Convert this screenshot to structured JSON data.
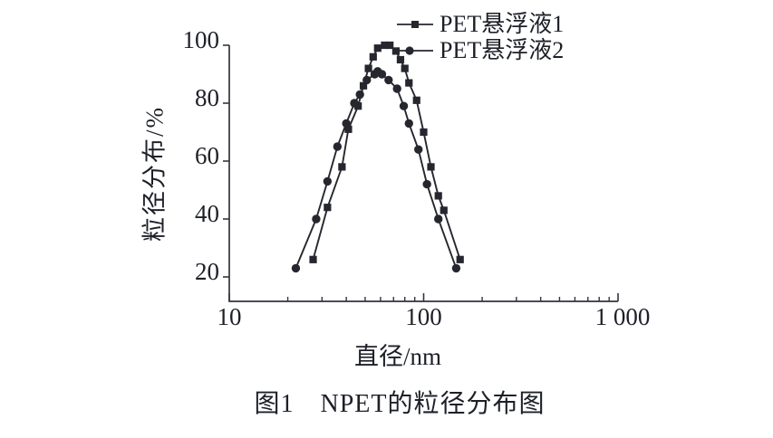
{
  "figure_caption": "图1　NPET的粒径分布图",
  "colors": {
    "axis": "#33343c",
    "series": "#26272e",
    "text": "#1e2028",
    "background": "#ffffff"
  },
  "chart_data": {
    "type": "line",
    "title": "",
    "xlabel": "直径/nm",
    "ylabel": "粒径分布/%",
    "x_scale": "log",
    "xlim": [
      10,
      1000
    ],
    "ylim": [
      11.5,
      102
    ],
    "grid": false,
    "legend_position": "top-right",
    "x_axis": {
      "major_ticks": [
        10,
        100,
        1000
      ],
      "major_tick_labels": [
        "10",
        "100",
        "1 000"
      ],
      "minor_ticks": [
        20,
        30,
        40,
        50,
        60,
        70,
        80,
        90,
        200,
        300,
        400,
        500,
        600,
        700,
        800,
        900
      ]
    },
    "y_axis": {
      "ticks": [
        20,
        40,
        60,
        80,
        100
      ],
      "tick_labels": [
        "20",
        "40",
        "60",
        "80",
        "100"
      ]
    },
    "series": [
      {
        "name": "PET悬浮液1",
        "marker": "square",
        "color": "#26272e",
        "points": [
          [
            27,
            26
          ],
          [
            32,
            44
          ],
          [
            38,
            58
          ],
          [
            41,
            71
          ],
          [
            46,
            79
          ],
          [
            49,
            86
          ],
          [
            52,
            92
          ],
          [
            55,
            96
          ],
          [
            58,
            99
          ],
          [
            63,
            100
          ],
          [
            67,
            100
          ],
          [
            72,
            98
          ],
          [
            76,
            95
          ],
          [
            80,
            92
          ],
          [
            84,
            87
          ],
          [
            92,
            81
          ],
          [
            100,
            70
          ],
          [
            109,
            58
          ],
          [
            119,
            48
          ],
          [
            127,
            43
          ],
          [
            154,
            26
          ]
        ]
      },
      {
        "name": "PET悬浮液2",
        "marker": "circle",
        "color": "#26272e",
        "points": [
          [
            22,
            23
          ],
          [
            28,
            40
          ],
          [
            32,
            53
          ],
          [
            36,
            65
          ],
          [
            40,
            73
          ],
          [
            44,
            80
          ],
          [
            47,
            83
          ],
          [
            51,
            88
          ],
          [
            56,
            90
          ],
          [
            58,
            91
          ],
          [
            61,
            90
          ],
          [
            66,
            88
          ],
          [
            73,
            85
          ],
          [
            79,
            79
          ],
          [
            84,
            73
          ],
          [
            94,
            64
          ],
          [
            104,
            52
          ],
          [
            119,
            40
          ],
          [
            147,
            23
          ]
        ]
      }
    ]
  }
}
